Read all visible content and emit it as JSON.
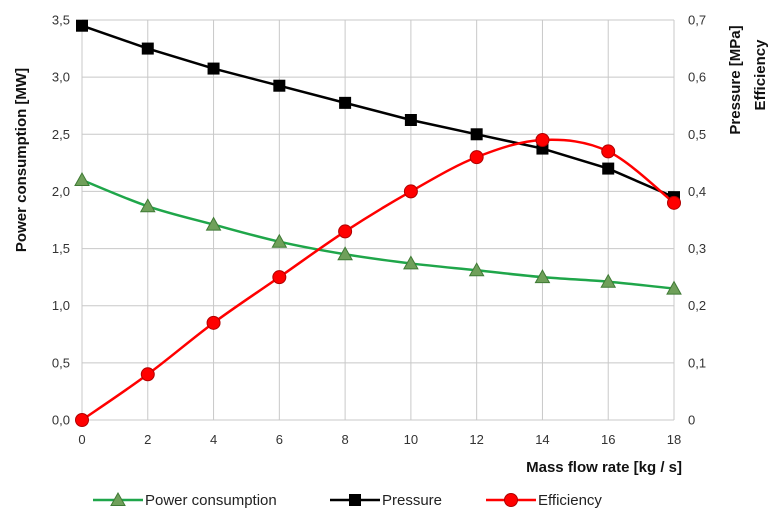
{
  "chart_data": {
    "type": "line",
    "xlabel": "Mass flow rate [kg / s]",
    "ylabel_left": "Power consumption [MW]",
    "ylabel_right": [
      "Pressure [MPa]",
      "Efficiency"
    ],
    "x": [
      0,
      2,
      4,
      6,
      8,
      10,
      12,
      14,
      16,
      18
    ],
    "x_ticks": [
      "0",
      "2",
      "4",
      "6",
      "8",
      "10",
      "12",
      "14",
      "16",
      "18"
    ],
    "ylim_left": [
      0,
      3.5
    ],
    "ylim_right": [
      0,
      0.7
    ],
    "y_ticks_left": [
      "0,0",
      "0,5",
      "1,0",
      "1,5",
      "2,0",
      "2,5",
      "3,0",
      "3,5"
    ],
    "y_ticks_right": [
      "0",
      "0,1",
      "0,2",
      "0,3",
      "0,4",
      "0,5",
      "0,6",
      "0,7"
    ],
    "grid": true,
    "legend_position": "bottom",
    "series": [
      {
        "name": "Power consumption",
        "axis": "left",
        "color": "#1fa64a",
        "marker": "triangle",
        "values": [
          2.1,
          1.87,
          1.71,
          1.56,
          1.45,
          1.37,
          1.31,
          1.25,
          1.21,
          1.15
        ]
      },
      {
        "name": "Pressure",
        "axis": "right",
        "color": "#000000",
        "marker": "square",
        "values": [
          0.69,
          0.65,
          0.615,
          0.585,
          0.555,
          0.525,
          0.5,
          0.475,
          0.44,
          0.39
        ]
      },
      {
        "name": "Efficiency",
        "axis": "right",
        "color": "#ff0000",
        "marker": "circle",
        "values": [
          0.0,
          0.08,
          0.17,
          0.25,
          0.33,
          0.4,
          0.46,
          0.49,
          0.47,
          0.38
        ]
      }
    ]
  }
}
